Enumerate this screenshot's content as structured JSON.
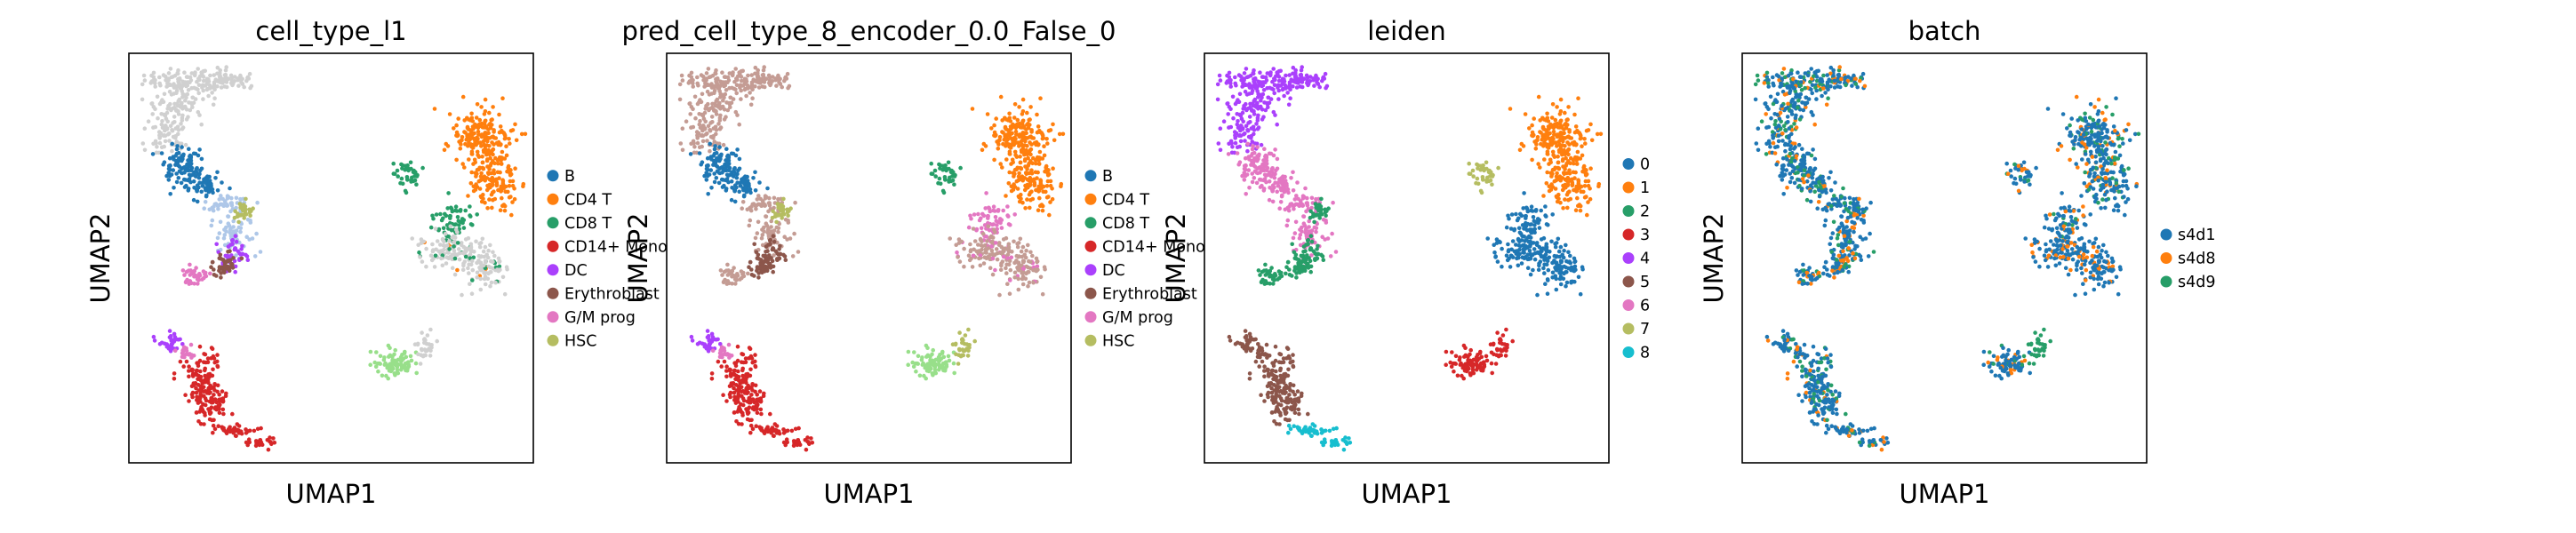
{
  "chart_data": [
    {
      "type": "scatter",
      "title": "cell_type_l1",
      "xlabel": "UMAP1",
      "ylabel": "UMAP2",
      "grid": false,
      "legend_position": "right",
      "series": [
        {
          "name": "B",
          "color": "#1f77b4"
        },
        {
          "name": "CD4 T",
          "color": "#ff7f0e"
        },
        {
          "name": "CD8 T",
          "color": "#279e68"
        },
        {
          "name": "CD14+ Mono",
          "color": "#d62728"
        },
        {
          "name": "DC",
          "color": "#aa40fc"
        },
        {
          "name": "Erythroblast",
          "color": "#8c564b"
        },
        {
          "name": "G/M prog",
          "color": "#e377c2"
        },
        {
          "name": "HSC",
          "color": "#b5bd61"
        }
      ]
    },
    {
      "type": "scatter",
      "title": "pred_cell_type_8_encoder_0.0_False_0",
      "xlabel": "UMAP1",
      "ylabel": "UMAP2",
      "grid": false,
      "legend_position": "right",
      "series": [
        {
          "name": "B",
          "color": "#1f77b4"
        },
        {
          "name": "CD4 T",
          "color": "#ff7f0e"
        },
        {
          "name": "CD8 T",
          "color": "#279e68"
        },
        {
          "name": "CD14+ Mono",
          "color": "#d62728"
        },
        {
          "name": "DC",
          "color": "#aa40fc"
        },
        {
          "name": "Erythroblast",
          "color": "#8c564b"
        },
        {
          "name": "G/M prog",
          "color": "#e377c2"
        },
        {
          "name": "HSC",
          "color": "#b5bd61"
        }
      ]
    },
    {
      "type": "scatter",
      "title": "leiden",
      "xlabel": "UMAP1",
      "ylabel": "UMAP2",
      "grid": false,
      "legend_position": "right",
      "series": [
        {
          "name": "0",
          "color": "#1f77b4"
        },
        {
          "name": "1",
          "color": "#ff7f0e"
        },
        {
          "name": "2",
          "color": "#279e68"
        },
        {
          "name": "3",
          "color": "#d62728"
        },
        {
          "name": "4",
          "color": "#aa40fc"
        },
        {
          "name": "5",
          "color": "#8c564b"
        },
        {
          "name": "6",
          "color": "#e377c2"
        },
        {
          "name": "7",
          "color": "#b5bd61"
        },
        {
          "name": "8",
          "color": "#17becf"
        }
      ]
    },
    {
      "type": "scatter",
      "title": "batch",
      "xlabel": "UMAP1",
      "ylabel": "UMAP2",
      "grid": false,
      "legend_position": "right",
      "series": [
        {
          "name": "s4d1",
          "color": "#1f77b4"
        },
        {
          "name": "s4d8",
          "color": "#ff7f0e"
        },
        {
          "name": "s4d9",
          "color": "#279e68"
        }
      ]
    }
  ]
}
